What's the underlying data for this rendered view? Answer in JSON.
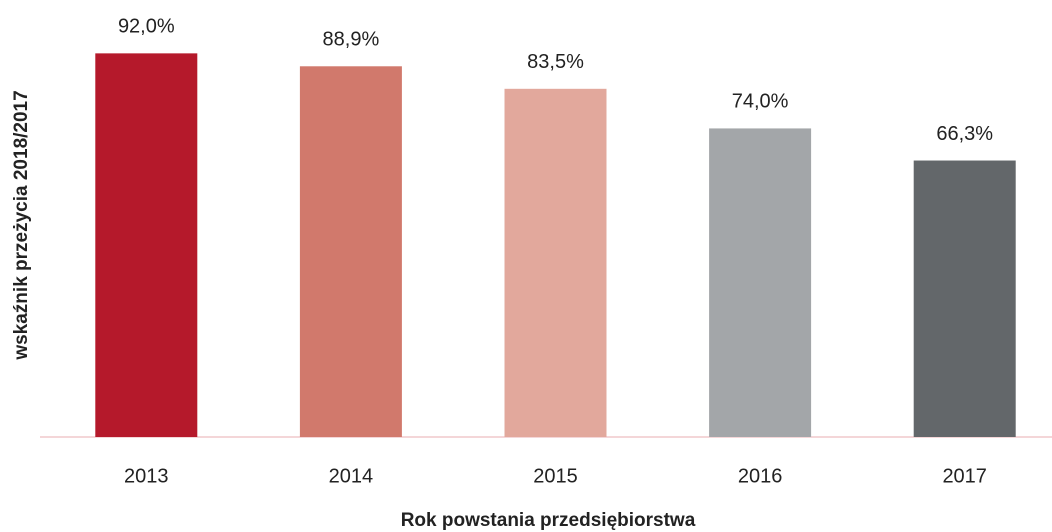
{
  "chart_data": {
    "type": "bar",
    "categories": [
      "2013",
      "2014",
      "2015",
      "2016",
      "2017"
    ],
    "values": [
      92.0,
      88.9,
      83.5,
      74.0,
      66.3
    ],
    "value_labels": [
      "92,0%",
      "88,9%",
      "83,5%",
      "74,0%",
      "66,3%"
    ],
    "colors": [
      "#b5192b",
      "#d1796c",
      "#e2a89c",
      "#a3a6a9",
      "#63676a"
    ],
    "ylim": [
      0,
      100
    ],
    "y_label": "wskaźnik przeżycia 2018/2017",
    "x_label": "Rok powstania przedsiębiorstwa"
  }
}
